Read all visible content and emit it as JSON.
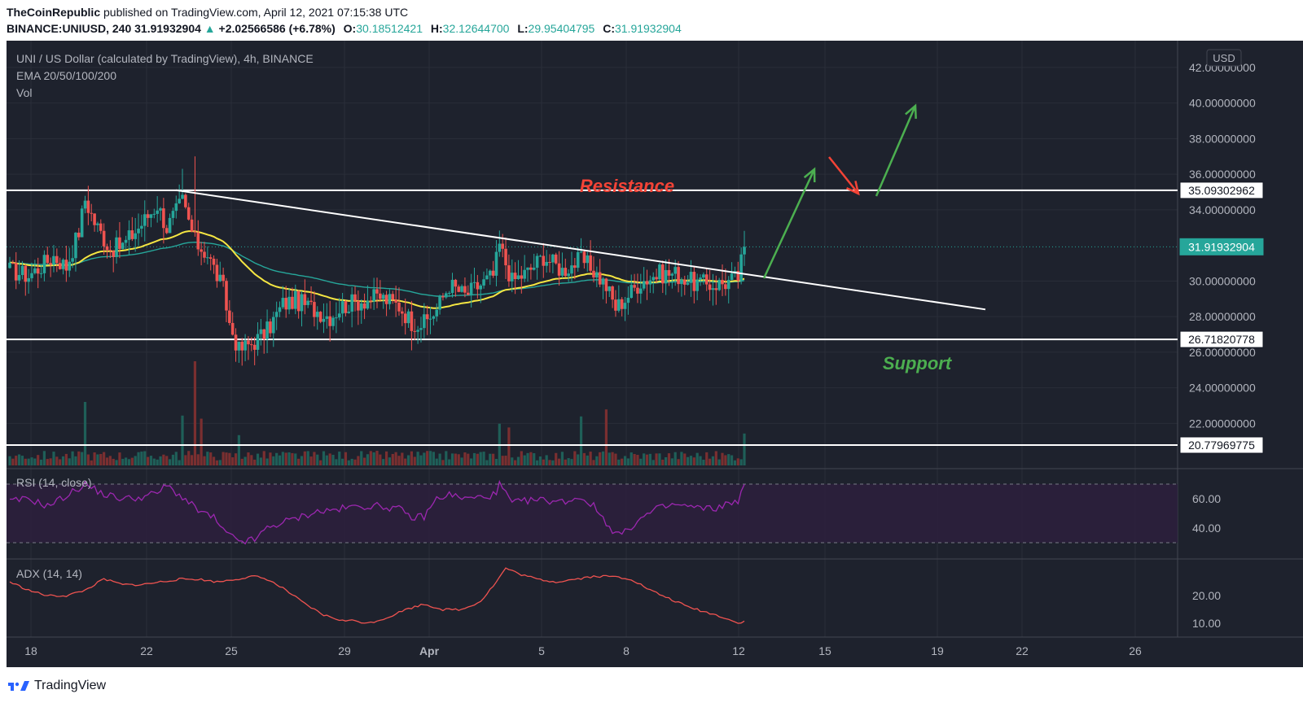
{
  "header": {
    "publisher": "TheCoinRepublic",
    "published_text": "published on TradingView.com, April 12, 2021 07:15:38 UTC",
    "symbol": "BINANCE:UNIUSD, 240",
    "last": "31.91932904",
    "change": "+2.02566586 (+6.78%)",
    "o_label": "O:",
    "o_value": "30.18512421",
    "h_label": "H:",
    "h_value": "32.12644700",
    "l_label": "L:",
    "l_value": "29.95404795",
    "c_label": "C:",
    "c_value": "31.91932904"
  },
  "legend": {
    "title": "UNI / US Dollar (calculated by TradingView), 4h, BINANCE",
    "ema": "EMA 20/50/100/200",
    "vol": "Vol",
    "rsi": "RSI (14, close)",
    "adx": "ADX (14, 14)"
  },
  "currency_button": "USD",
  "annotations": {
    "resistance": "Resistance",
    "support": "Support"
  },
  "footer": {
    "brand": "TradingView"
  },
  "colors": {
    "bg": "#1e222d",
    "up": "#26a69a",
    "down": "#ef5350",
    "ema_fast": "#f5e642",
    "ema_slow": "#26a69a",
    "rsi": "#9c27b0",
    "adx": "#ef5350",
    "annot_red": "#f44336",
    "annot_green": "#4caf50"
  },
  "chart_data": {
    "type": "candlestick",
    "price_axis": {
      "ticks": [
        "42.00000000",
        "40.00000000",
        "38.00000000",
        "36.00000000",
        "34.00000000",
        "30.00000000",
        "28.00000000",
        "26.00000000",
        "24.00000000",
        "22.00000000"
      ],
      "range": [
        19.5,
        43.5
      ]
    },
    "price_labels": [
      {
        "value": 35.09302962,
        "text": "35.09302962",
        "style": "line"
      },
      {
        "value": 31.91932904,
        "text": "31.91932904",
        "style": "last"
      },
      {
        "value": 26.71820778,
        "text": "26.71820778",
        "style": "line"
      },
      {
        "value": 20.77969775,
        "text": "20.77969775",
        "style": "line"
      }
    ],
    "horizontal_levels": [
      35.09302962,
      26.71820778,
      20.77969775
    ],
    "last_price": 31.91932904,
    "time_axis": [
      "18",
      "22",
      "25",
      "29",
      "Apr",
      "5",
      "8",
      "12",
      "15",
      "19",
      "22",
      "26"
    ],
    "rsi_ticks": [
      "60.00",
      "40.00"
    ],
    "rsi_bands": [
      70,
      30
    ],
    "adx_ticks": [
      "20.00",
      "10.00"
    ],
    "trendline": {
      "from": {
        "bar": 0,
        "price": 35.1
      },
      "to": {
        "bar": 1,
        "price": 28.4
      }
    },
    "price_anchors": [
      [
        0,
        30.6
      ],
      [
        6,
        30.3
      ],
      [
        14,
        31.4
      ],
      [
        18,
        30.8
      ],
      [
        22,
        32.8
      ],
      [
        24,
        34.6
      ],
      [
        27,
        33.3
      ],
      [
        32,
        31.8
      ],
      [
        36,
        32.0
      ],
      [
        41,
        33.0
      ],
      [
        47,
        34.3
      ],
      [
        50,
        33.0
      ],
      [
        55,
        34.5
      ],
      [
        59,
        32.2
      ],
      [
        63,
        31.5
      ],
      [
        68,
        29.5
      ],
      [
        70,
        27.6
      ],
      [
        73,
        26.1
      ],
      [
        78,
        26.6
      ],
      [
        82,
        27.2
      ],
      [
        87,
        28.7
      ],
      [
        91,
        28.9
      ],
      [
        96,
        28.5
      ],
      [
        102,
        28.0
      ],
      [
        106,
        28.6
      ],
      [
        112,
        28.9
      ],
      [
        118,
        29.1
      ],
      [
        124,
        28.6
      ],
      [
        128,
        27.7
      ],
      [
        132,
        27.6
      ],
      [
        136,
        28.4
      ],
      [
        140,
        29.8
      ],
      [
        145,
        29.2
      ],
      [
        150,
        29.8
      ],
      [
        154,
        30.3
      ],
      [
        156,
        32.0
      ],
      [
        160,
        30.0
      ],
      [
        165,
        30.5
      ],
      [
        170,
        31.4
      ],
      [
        176,
        30.6
      ],
      [
        182,
        31.2
      ],
      [
        186,
        30.6
      ],
      [
        190,
        29.7
      ],
      [
        193,
        28.5
      ],
      [
        196,
        29.0
      ],
      [
        201,
        30.0
      ],
      [
        207,
        30.4
      ],
      [
        212,
        30.4
      ],
      [
        218,
        29.9
      ],
      [
        223,
        29.8
      ],
      [
        228,
        29.9
      ],
      [
        232,
        30.2
      ],
      [
        234,
        31.91
      ]
    ],
    "rsi_anchors": [
      [
        0,
        58
      ],
      [
        6,
        60
      ],
      [
        12,
        55
      ],
      [
        18,
        62
      ],
      [
        24,
        70
      ],
      [
        30,
        63
      ],
      [
        36,
        60
      ],
      [
        42,
        61
      ],
      [
        47,
        64
      ],
      [
        50,
        69
      ],
      [
        55,
        61
      ],
      [
        60,
        52
      ],
      [
        65,
        47
      ],
      [
        68,
        38
      ],
      [
        72,
        32
      ],
      [
        75,
        31
      ],
      [
        78,
        32
      ],
      [
        82,
        40
      ],
      [
        87,
        44
      ],
      [
        92,
        47
      ],
      [
        97,
        51
      ],
      [
        102,
        52
      ],
      [
        108,
        54
      ],
      [
        112,
        55
      ],
      [
        118,
        55
      ],
      [
        124,
        53
      ],
      [
        128,
        47
      ],
      [
        132,
        48
      ],
      [
        136,
        60
      ],
      [
        140,
        63
      ],
      [
        145,
        60
      ],
      [
        150,
        61
      ],
      [
        155,
        63
      ],
      [
        156,
        70
      ],
      [
        160,
        57
      ],
      [
        166,
        59
      ],
      [
        170,
        59
      ],
      [
        176,
        58
      ],
      [
        182,
        61
      ],
      [
        186,
        55
      ],
      [
        190,
        44
      ],
      [
        193,
        36
      ],
      [
        196,
        37
      ],
      [
        200,
        45
      ],
      [
        206,
        53
      ],
      [
        212,
        56
      ],
      [
        218,
        54
      ],
      [
        224,
        53
      ],
      [
        228,
        56
      ],
      [
        232,
        59
      ],
      [
        234,
        68
      ]
    ],
    "adx_anchors": [
      [
        0,
        25
      ],
      [
        6,
        22
      ],
      [
        12,
        20
      ],
      [
        18,
        20
      ],
      [
        24,
        22
      ],
      [
        30,
        26
      ],
      [
        36,
        24
      ],
      [
        42,
        24
      ],
      [
        48,
        25
      ],
      [
        54,
        26
      ],
      [
        60,
        26
      ],
      [
        66,
        25
      ],
      [
        72,
        26
      ],
      [
        78,
        27
      ],
      [
        82,
        26
      ],
      [
        88,
        22
      ],
      [
        94,
        17
      ],
      [
        100,
        13
      ],
      [
        106,
        11
      ],
      [
        110,
        11
      ],
      [
        114,
        10
      ],
      [
        120,
        12
      ],
      [
        126,
        15
      ],
      [
        132,
        17
      ],
      [
        138,
        15
      ],
      [
        144,
        15
      ],
      [
        150,
        18
      ],
      [
        155,
        25
      ],
      [
        158,
        30
      ],
      [
        162,
        28
      ],
      [
        168,
        26
      ],
      [
        174,
        25
      ],
      [
        180,
        26
      ],
      [
        186,
        27
      ],
      [
        192,
        27
      ],
      [
        198,
        26
      ],
      [
        204,
        22
      ],
      [
        210,
        19
      ],
      [
        216,
        16
      ],
      [
        222,
        14
      ],
      [
        228,
        12
      ],
      [
        232,
        10
      ],
      [
        234,
        11
      ]
    ],
    "volume_scale_max": 100
  }
}
